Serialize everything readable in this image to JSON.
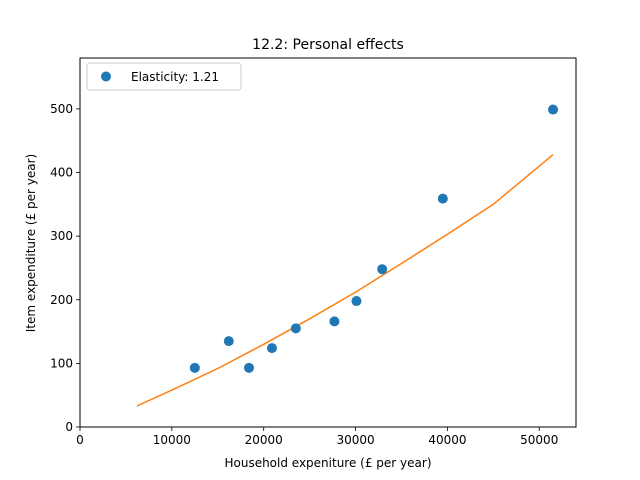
{
  "chart_data": {
    "type": "scatter",
    "title": "12.2: Personal effects",
    "xlabel": "Household expeniture (£ per year)",
    "ylabel": "Item expenditure (£ per year)",
    "xlim": [
      0,
      54000
    ],
    "ylim": [
      0,
      580
    ],
    "xticks": [
      0,
      10000,
      20000,
      30000,
      40000,
      50000
    ],
    "yticks": [
      0,
      100,
      200,
      300,
      400,
      500
    ],
    "grid": false,
    "legend": {
      "placement": "top-left",
      "entries": [
        "Elasticity: 1.21"
      ]
    },
    "series": [
      {
        "name": "Elasticity: 1.21",
        "kind": "scatter",
        "color": "#1f77b4",
        "x": [
          12500,
          16200,
          18400,
          20900,
          23500,
          27700,
          30100,
          32900,
          39500,
          51500
        ],
        "y": [
          93,
          135,
          93,
          124,
          155,
          166,
          198,
          248,
          359,
          499
        ]
      },
      {
        "kind": "line",
        "color": "#ff7f0e",
        "x": [
          6200,
          10000,
          15000,
          20000,
          25000,
          30000,
          35000,
          40000,
          45000,
          51500
        ],
        "y": [
          33,
          58,
          92,
          130,
          170,
          212,
          257,
          303,
          350,
          428
        ]
      }
    ]
  }
}
